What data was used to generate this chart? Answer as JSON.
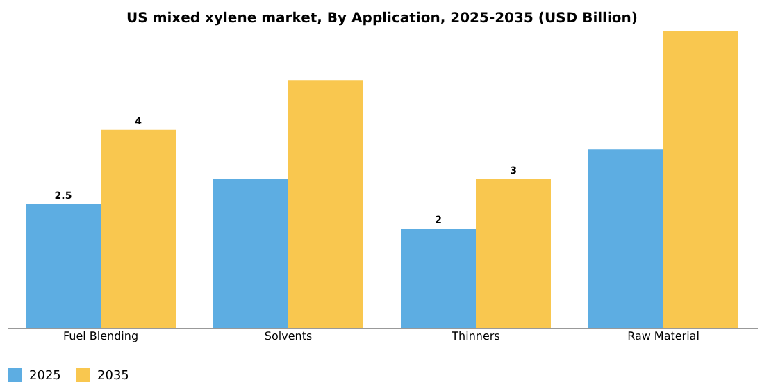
{
  "chart_data": {
    "type": "bar",
    "title": "US mixed xylene market, By Application, 2025-2035 (USD Billion)",
    "categories": [
      "Fuel Blending",
      "Solvents",
      "Thinners",
      "Raw Material"
    ],
    "series": [
      {
        "name": "2025",
        "color": "#5dade2",
        "values": [
          2.5,
          3.0,
          2.0,
          3.6
        ],
        "value_labels": [
          "2.5",
          null,
          "2",
          null
        ]
      },
      {
        "name": "2035",
        "color": "#f9c74f",
        "values": [
          4.0,
          5.0,
          3.0,
          6.0
        ],
        "value_labels": [
          "4",
          null,
          "3",
          null
        ]
      }
    ],
    "legend": "bottom",
    "grid": false
  }
}
